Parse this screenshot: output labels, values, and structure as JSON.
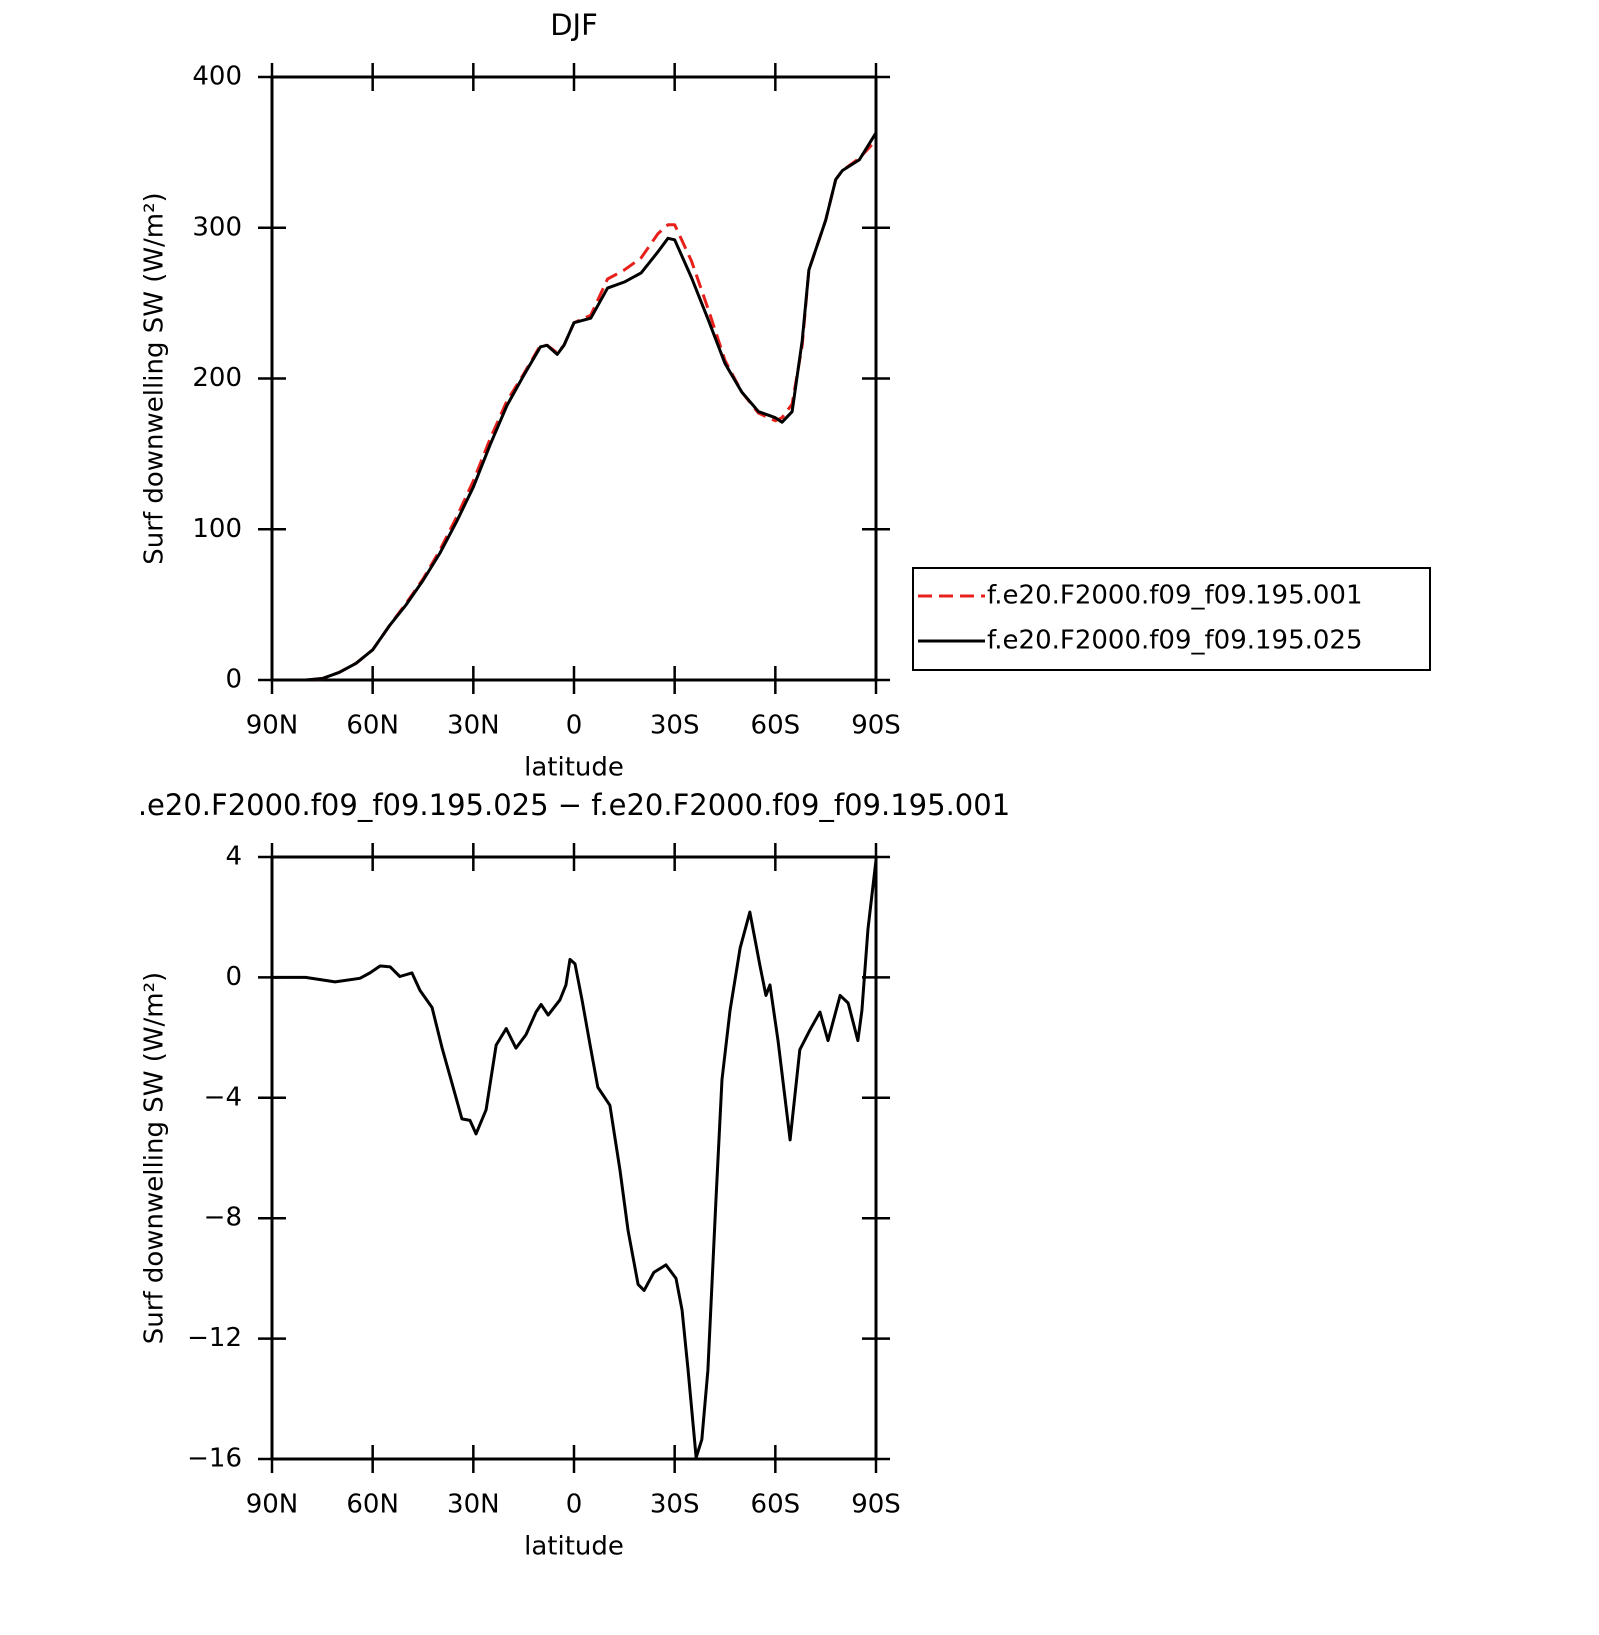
{
  "chart_data": [
    {
      "type": "line",
      "title": "DJF",
      "xlabel": "latitude",
      "ylabel": "Surf downwelling SW (W/m²)",
      "x": [
        90,
        85,
        80,
        75,
        70,
        65,
        60,
        55,
        50,
        45,
        40,
        35,
        30,
        25,
        20,
        15,
        10,
        8,
        5,
        3,
        0,
        -5,
        -10,
        -15,
        -20,
        -25,
        -28,
        -30,
        -35,
        -40,
        -45,
        -50,
        -55,
        -60,
        -62,
        -65,
        -68,
        -70,
        -75,
        -78,
        -80,
        -85,
        -90
      ],
      "series": [
        {
          "name": "f.e20.F2000.f09_f09.195.001",
          "color": "#e8201c",
          "style": "dashed",
          "values": [
            0,
            0,
            0,
            1,
            5,
            11,
            20,
            36,
            51,
            67,
            86,
            108,
            132,
            160,
            185,
            203,
            222,
            222,
            217,
            222,
            237,
            242,
            266,
            272,
            280,
            296,
            302,
            302,
            278,
            246,
            212,
            191,
            177,
            172,
            174,
            183,
            222,
            272,
            305,
            332,
            338,
            346,
            358
          ]
        },
        {
          "name": "f.e20.F2000.f09_f09.195.025",
          "color": "#000000",
          "style": "solid",
          "values": [
            0,
            0,
            0,
            1,
            5,
            11,
            20,
            36,
            50,
            66,
            84,
            105,
            128,
            156,
            182,
            202,
            221,
            222,
            216,
            222,
            237,
            240,
            260,
            264,
            270,
            284,
            293,
            292,
            267,
            239,
            210,
            191,
            178,
            174,
            171,
            178,
            225,
            272,
            305,
            332,
            338,
            345,
            363
          ]
        }
      ],
      "xlim": [
        90,
        -90
      ],
      "xticks": [
        {
          "value": 90,
          "label": "90N"
        },
        {
          "value": 60,
          "label": "60N"
        },
        {
          "value": 30,
          "label": "30N"
        },
        0,
        {
          "value": -30,
          "label": "30S"
        },
        {
          "value": -60,
          "label": "60S"
        },
        {
          "value": -90,
          "label": "90S"
        }
      ],
      "ylim": [
        0,
        400
      ],
      "yticks": [
        0,
        100,
        200,
        300,
        400
      ],
      "grid": false,
      "legend": "right"
    },
    {
      "type": "line",
      "title": ".e20.F2000.f09_f09.195.025 − f.e20.F2000.f09_f09.195.001",
      "xlabel": "latitude",
      "ylabel": "Surf downwelling SW (W/m²)",
      "x": [
        90,
        80,
        71.2,
        63.8,
        60.8,
        57.8,
        54.8,
        51.9,
        48.3,
        45.9,
        42.3,
        39.3,
        36.4,
        33.4,
        31.0,
        29.2,
        26.2,
        23.2,
        20.2,
        17.3,
        14.3,
        11.3,
        9.8,
        7.7,
        4.2,
        2.4,
        1.2,
        -0.3,
        -2.4,
        -4.8,
        -7.1,
        -10.7,
        -13.7,
        -16.1,
        -19.1,
        -20.9,
        -23.8,
        -27.4,
        -30.4,
        -32.2,
        -34.0,
        -36.4,
        -38.1,
        -39.9,
        -42.3,
        -44.1,
        -46.5,
        -49.5,
        -52.4,
        -55.4,
        -57.2,
        -58.4,
        -60.8,
        -64.4,
        -67.3,
        -70.3,
        -73.3,
        -75.7,
        -79.3,
        -81.7,
        -84.6,
        -85.8,
        -87.6,
        -90
      ],
      "values": [
        0,
        0,
        -0.15,
        -0.03,
        0.15,
        0.38,
        0.35,
        0.03,
        0.15,
        -0.43,
        -1.0,
        -2.35,
        -3.5,
        -4.7,
        -4.75,
        -5.2,
        -4.4,
        -2.25,
        -1.7,
        -2.35,
        -1.9,
        -1.15,
        -0.9,
        -1.25,
        -0.75,
        -0.25,
        0.6,
        0.45,
        -0.75,
        -2.25,
        -3.65,
        -4.25,
        -6.4,
        -8.4,
        -10.2,
        -10.4,
        -9.8,
        -9.55,
        -10.0,
        -11.05,
        -13.05,
        -15.95,
        -15.35,
        -13.05,
        -7.4,
        -3.4,
        -1.1,
        0.97,
        2.17,
        0.4,
        -0.6,
        -0.25,
        -2.1,
        -5.4,
        -2.4,
        -1.75,
        -1.15,
        -2.1,
        -0.6,
        -0.85,
        -2.1,
        -1.1,
        1.6,
        3.9
      ],
      "color": "#000000",
      "style": "solid",
      "xlim": [
        90,
        -90
      ],
      "xticks": [
        {
          "value": 90,
          "label": "90N"
        },
        {
          "value": 60,
          "label": "60N"
        },
        {
          "value": 30,
          "label": "30N"
        },
        0,
        {
          "value": -30,
          "label": "30S"
        },
        {
          "value": -60,
          "label": "60S"
        },
        {
          "value": -90,
          "label": "90S"
        }
      ],
      "ylim": [
        -16,
        4
      ],
      "yticks": [
        4,
        0,
        {
          "value": -4,
          "label": "−4"
        },
        {
          "value": -8,
          "label": "−8"
        },
        {
          "value": -12,
          "label": "−12"
        },
        {
          "value": -16,
          "label": "−16"
        }
      ],
      "grid": false
    }
  ]
}
